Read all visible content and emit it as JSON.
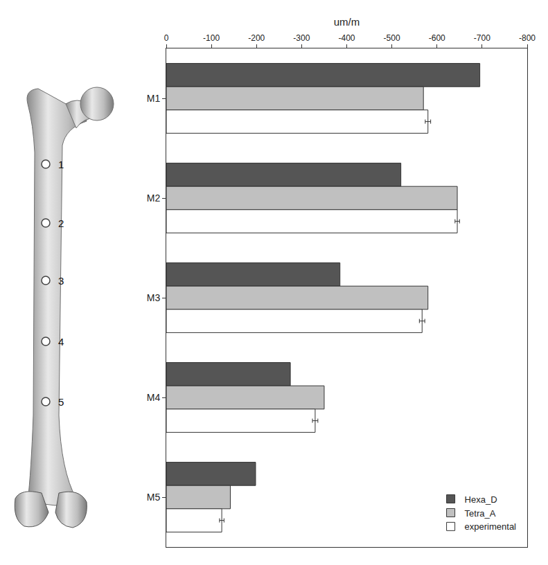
{
  "chart_data": {
    "type": "bar",
    "orientation": "horizontal",
    "x_label": "um/m",
    "categories": [
      "M1",
      "M2",
      "M3",
      "M4",
      "M5"
    ],
    "series": [
      {
        "name": "Hexa_D",
        "color": "#555555",
        "values": [
          -695,
          -520,
          -385,
          -275,
          -198
        ]
      },
      {
        "name": "Tetra_A",
        "color": "#c0c0c0",
        "values": [
          -570,
          -645,
          -580,
          -350,
          -142
        ]
      },
      {
        "name": "experimental",
        "color": "#ffffff",
        "values": [
          -580,
          -645,
          -567,
          -330,
          -123
        ],
        "error": [
          6,
          5,
          6,
          6,
          5
        ]
      }
    ],
    "xlim": [
      0,
      -800
    ],
    "xticks": [
      0,
      -100,
      -200,
      -300,
      -400,
      -500,
      -600,
      -700,
      -800
    ],
    "grid": false,
    "legend": "bottom right"
  },
  "diagram": {
    "point_labels": [
      "1",
      "2",
      "3",
      "4",
      "5"
    ]
  }
}
